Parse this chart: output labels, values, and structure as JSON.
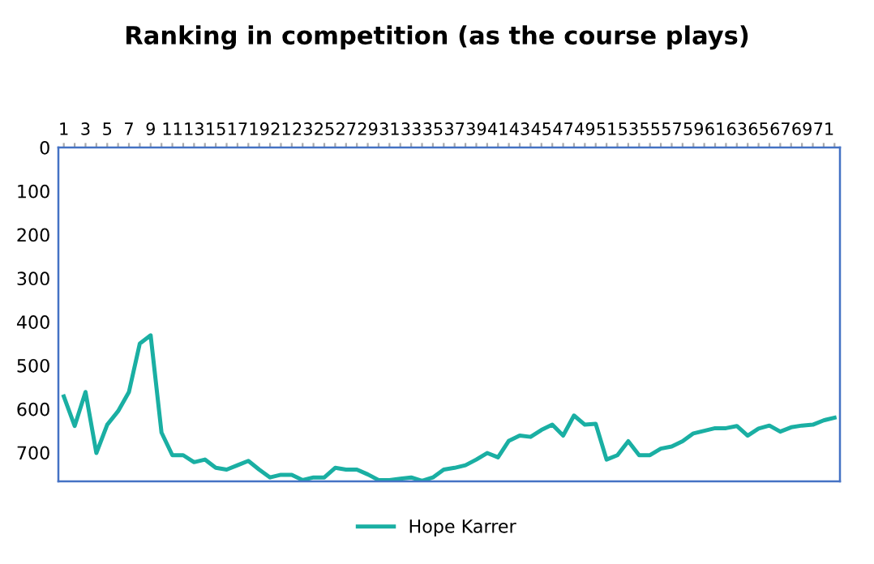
{
  "chart_data": {
    "type": "line",
    "title": "Ranking in competition (as the course plays)",
    "categories": [
      "1",
      null,
      "3",
      null,
      "5",
      null,
      "7",
      null,
      "9",
      null,
      "11",
      null,
      "13",
      null,
      "15",
      null,
      "17",
      null,
      "19",
      null,
      "21",
      null,
      "23",
      null,
      "25",
      null,
      "27",
      null,
      "29",
      null,
      "31",
      null,
      "33",
      null,
      "35",
      null,
      "37",
      null,
      "39",
      null,
      "41",
      null,
      "43",
      null,
      "45",
      null,
      "47",
      null,
      "49",
      null,
      "51",
      null,
      "53",
      null,
      "55",
      null,
      "57",
      null,
      "59",
      null,
      "61",
      null,
      "63",
      null,
      "65",
      null,
      "67",
      null,
      "69",
      null,
      "71",
      null
    ],
    "series": [
      {
        "name": "Hope Karrer",
        "color": "#1aafa3",
        "values": [
          571,
          639,
          561,
          701,
          636,
          605,
          561,
          450,
          431,
          654,
          706,
          706,
          722,
          716,
          735,
          739,
          729,
          719,
          739,
          757,
          751,
          751,
          763,
          757,
          757,
          735,
          739,
          739,
          750,
          763,
          763,
          760,
          757,
          765,
          757,
          739,
          735,
          729,
          716,
          701,
          711,
          673,
          661,
          664,
          648,
          636,
          661,
          615,
          636,
          634,
          716,
          706,
          674,
          706,
          706,
          691,
          686,
          674,
          656,
          650,
          644,
          644,
          639,
          661,
          645,
          638,
          652,
          642,
          638,
          636,
          626,
          620
        ]
      }
    ],
    "ylim": [
      766,
      0
    ],
    "yticks": [
      0,
      100,
      200,
      300,
      400,
      500,
      600,
      700
    ],
    "grid": false,
    "legend": "bottom",
    "marker": "none",
    "line_style": "solid"
  }
}
